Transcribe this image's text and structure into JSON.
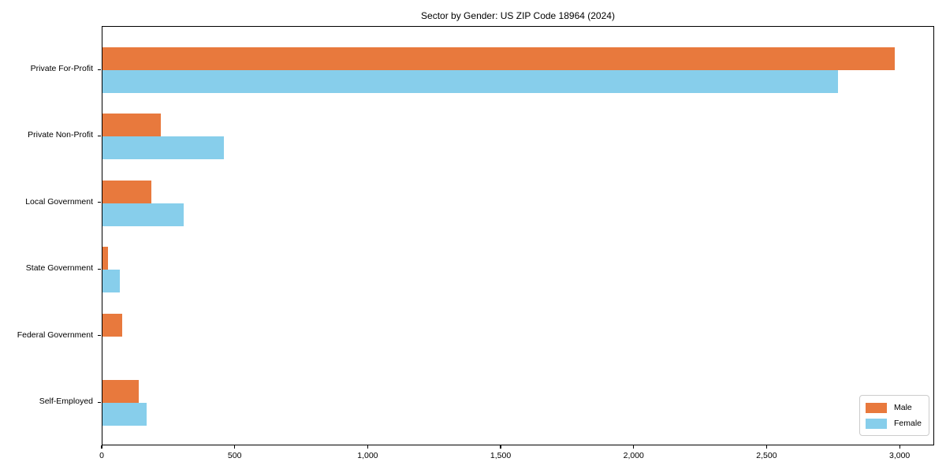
{
  "chart_data": {
    "type": "bar",
    "orientation": "horizontal",
    "title": "Sector by Gender: US ZIP Code 18964 (2024)",
    "categories": [
      "Private For-Profit",
      "Private Non-Profit",
      "Local Government",
      "State Government",
      "Federal Government",
      "Self-Employed"
    ],
    "series": [
      {
        "name": "Male",
        "color": "#e8793d",
        "values": [
          2980,
          220,
          185,
          20,
          75,
          135
        ]
      },
      {
        "name": "Female",
        "color": "#87ceeb",
        "values": [
          2765,
          455,
          305,
          65,
          0,
          165
        ]
      }
    ],
    "xlabel": "",
    "ylabel": "",
    "xlim": [
      0,
      3130
    ],
    "x_ticks": [
      0,
      500,
      1000,
      1500,
      2000,
      2500,
      3000
    ],
    "x_tick_labels": [
      "0",
      "500",
      "1,000",
      "1,500",
      "2,000",
      "2,500",
      "3,000"
    ],
    "legend_position": "lower right",
    "grid": false
  },
  "colors": {
    "background": "#ffffff",
    "axis": "#000000",
    "text": "#000000",
    "legend_border": "#cccccc"
  }
}
